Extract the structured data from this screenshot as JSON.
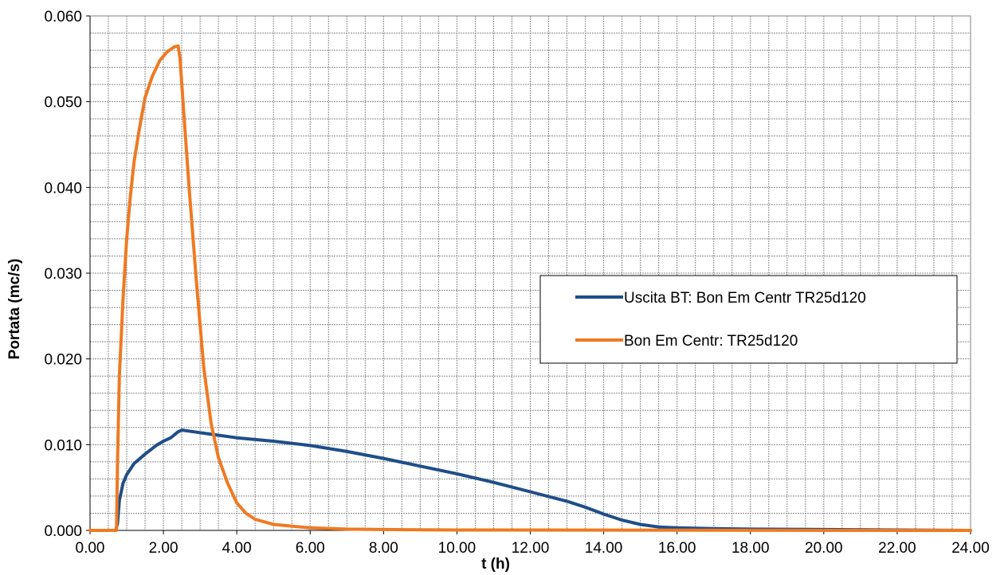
{
  "chart_data": {
    "type": "line",
    "title": "",
    "xlabel": "t (h)",
    "ylabel": "Portata (mc/s)",
    "xlim": [
      0,
      24
    ],
    "ylim": [
      0,
      0.06
    ],
    "x_ticks": [
      "0.00",
      "2.00",
      "4.00",
      "6.00",
      "8.00",
      "10.00",
      "12.00",
      "14.00",
      "16.00",
      "18.00",
      "20.00",
      "22.00",
      "24.00"
    ],
    "y_ticks": [
      "0.000",
      "0.010",
      "0.020",
      "0.030",
      "0.040",
      "0.050",
      "0.060"
    ],
    "grid": true,
    "grid_minor_x": 0.5,
    "grid_minor_y": 0.002,
    "legend_position": "center-right",
    "series": [
      {
        "name": "Uscita BT: Bon Em Centr TR25d120",
        "color": "#1f4e89",
        "points": [
          [
            0.0,
            0.0
          ],
          [
            0.7,
            0.0
          ],
          [
            0.75,
            0.0008
          ],
          [
            0.8,
            0.0035
          ],
          [
            0.9,
            0.0055
          ],
          [
            1.0,
            0.0065
          ],
          [
            1.2,
            0.0078
          ],
          [
            1.5,
            0.0089
          ],
          [
            1.8,
            0.0099
          ],
          [
            2.0,
            0.0104
          ],
          [
            2.2,
            0.0108
          ],
          [
            2.4,
            0.0115
          ],
          [
            2.5,
            0.0117
          ],
          [
            3.0,
            0.0114
          ],
          [
            3.5,
            0.0111
          ],
          [
            4.0,
            0.0108
          ],
          [
            5.0,
            0.0104
          ],
          [
            6.0,
            0.0099
          ],
          [
            7.0,
            0.0092
          ],
          [
            8.0,
            0.0084
          ],
          [
            9.0,
            0.0075
          ],
          [
            10.0,
            0.0066
          ],
          [
            11.0,
            0.0056
          ],
          [
            12.0,
            0.0045
          ],
          [
            13.0,
            0.0034
          ],
          [
            13.5,
            0.0027
          ],
          [
            14.0,
            0.0019
          ],
          [
            14.5,
            0.0012
          ],
          [
            15.0,
            0.0007
          ],
          [
            15.5,
            0.0004
          ],
          [
            16.0,
            0.0003
          ],
          [
            17.0,
            0.0002
          ],
          [
            18.0,
            0.00015
          ],
          [
            20.0,
            0.0001
          ],
          [
            22.0,
            5e-05
          ],
          [
            24.0,
            0.0
          ]
        ]
      },
      {
        "name": "Bon Em Centr: TR25d120",
        "color": "#ee7a22",
        "points": [
          [
            0.0,
            0.0
          ],
          [
            0.72,
            0.0
          ],
          [
            0.75,
            0.008
          ],
          [
            0.8,
            0.018
          ],
          [
            0.9,
            0.027
          ],
          [
            1.0,
            0.034
          ],
          [
            1.1,
            0.039
          ],
          [
            1.2,
            0.043
          ],
          [
            1.35,
            0.047
          ],
          [
            1.5,
            0.0505
          ],
          [
            1.7,
            0.053
          ],
          [
            1.9,
            0.0548
          ],
          [
            2.1,
            0.0558
          ],
          [
            2.3,
            0.0564
          ],
          [
            2.4,
            0.0565
          ],
          [
            2.45,
            0.0552
          ],
          [
            2.55,
            0.049
          ],
          [
            2.7,
            0.04
          ],
          [
            2.9,
            0.029
          ],
          [
            3.1,
            0.019
          ],
          [
            3.3,
            0.0125
          ],
          [
            3.5,
            0.0085
          ],
          [
            3.75,
            0.0055
          ],
          [
            4.0,
            0.0032
          ],
          [
            4.25,
            0.002
          ],
          [
            4.5,
            0.0013
          ],
          [
            5.0,
            0.0007
          ],
          [
            6.0,
            0.0003
          ],
          [
            7.0,
            0.00015
          ],
          [
            8.0,
            0.0001
          ],
          [
            10.0,
            5e-05
          ],
          [
            24.0,
            0.0
          ]
        ]
      }
    ]
  }
}
